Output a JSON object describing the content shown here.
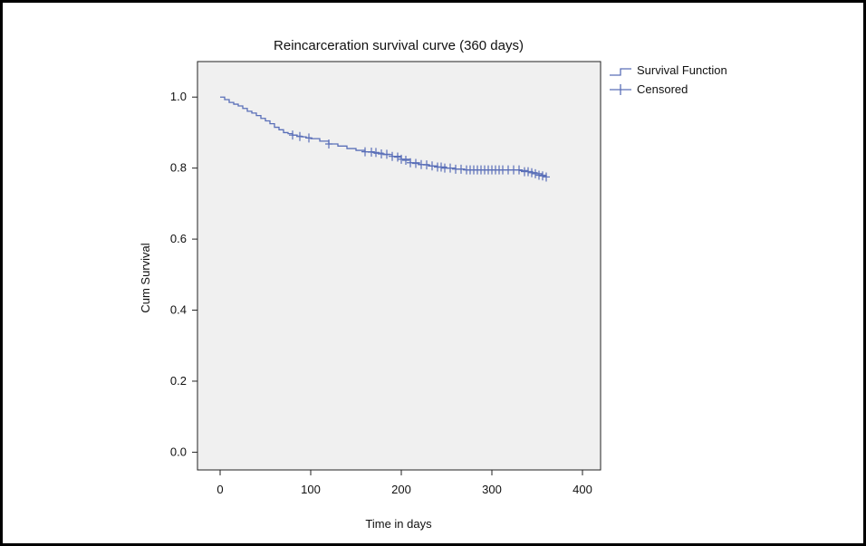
{
  "chart_data": {
    "type": "line",
    "title": "Reincarceration survival curve (360 days)",
    "xlabel": "Time in days",
    "ylabel": "Cum Survival",
    "xlim": [
      -25,
      420
    ],
    "ylim": [
      -0.05,
      1.1
    ],
    "xticks": [
      0,
      100,
      200,
      300,
      400
    ],
    "yticks": [
      0.0,
      0.2,
      0.4,
      0.6,
      0.8,
      1.0
    ],
    "grid": false,
    "legend_position": "right",
    "colors": {
      "series": "#5a6fb8",
      "plot_bg": "#f0f0f0"
    },
    "series": [
      {
        "name": "Survival Function",
        "kind": "step",
        "x": [
          0,
          5,
          10,
          15,
          20,
          25,
          30,
          35,
          40,
          45,
          50,
          55,
          60,
          65,
          70,
          75,
          80,
          85,
          90,
          95,
          100,
          110,
          120,
          130,
          140,
          150,
          160,
          170,
          180,
          190,
          200,
          210,
          220,
          230,
          240,
          250,
          260,
          270,
          280,
          290,
          300,
          310,
          320,
          330,
          340,
          345,
          350,
          355,
          360
        ],
        "y": [
          1.0,
          0.993,
          0.985,
          0.98,
          0.975,
          0.968,
          0.96,
          0.955,
          0.948,
          0.94,
          0.933,
          0.925,
          0.915,
          0.908,
          0.9,
          0.897,
          0.893,
          0.89,
          0.888,
          0.885,
          0.883,
          0.876,
          0.868,
          0.862,
          0.855,
          0.85,
          0.846,
          0.842,
          0.838,
          0.833,
          0.825,
          0.815,
          0.81,
          0.806,
          0.803,
          0.8,
          0.797,
          0.795,
          0.795,
          0.795,
          0.795,
          0.795,
          0.795,
          0.793,
          0.79,
          0.787,
          0.784,
          0.78,
          0.775
        ]
      },
      {
        "name": "Censored",
        "kind": "marker",
        "x": [
          80,
          88,
          98,
          120,
          160,
          167,
          172,
          178,
          184,
          190,
          196,
          200,
          205,
          210,
          216,
          222,
          228,
          234,
          240,
          244,
          248,
          254,
          260,
          266,
          272,
          276,
          280,
          284,
          288,
          292,
          296,
          300,
          304,
          308,
          312,
          318,
          324,
          330,
          336,
          340,
          344,
          348,
          352,
          356,
          360
        ],
        "y": [
          0.893,
          0.889,
          0.885,
          0.868,
          0.846,
          0.845,
          0.844,
          0.84,
          0.839,
          0.833,
          0.831,
          0.825,
          0.822,
          0.815,
          0.813,
          0.81,
          0.809,
          0.806,
          0.803,
          0.803,
          0.8,
          0.8,
          0.797,
          0.797,
          0.795,
          0.795,
          0.795,
          0.795,
          0.795,
          0.795,
          0.795,
          0.795,
          0.795,
          0.795,
          0.795,
          0.795,
          0.795,
          0.795,
          0.79,
          0.79,
          0.787,
          0.784,
          0.78,
          0.778,
          0.775
        ]
      }
    ]
  }
}
